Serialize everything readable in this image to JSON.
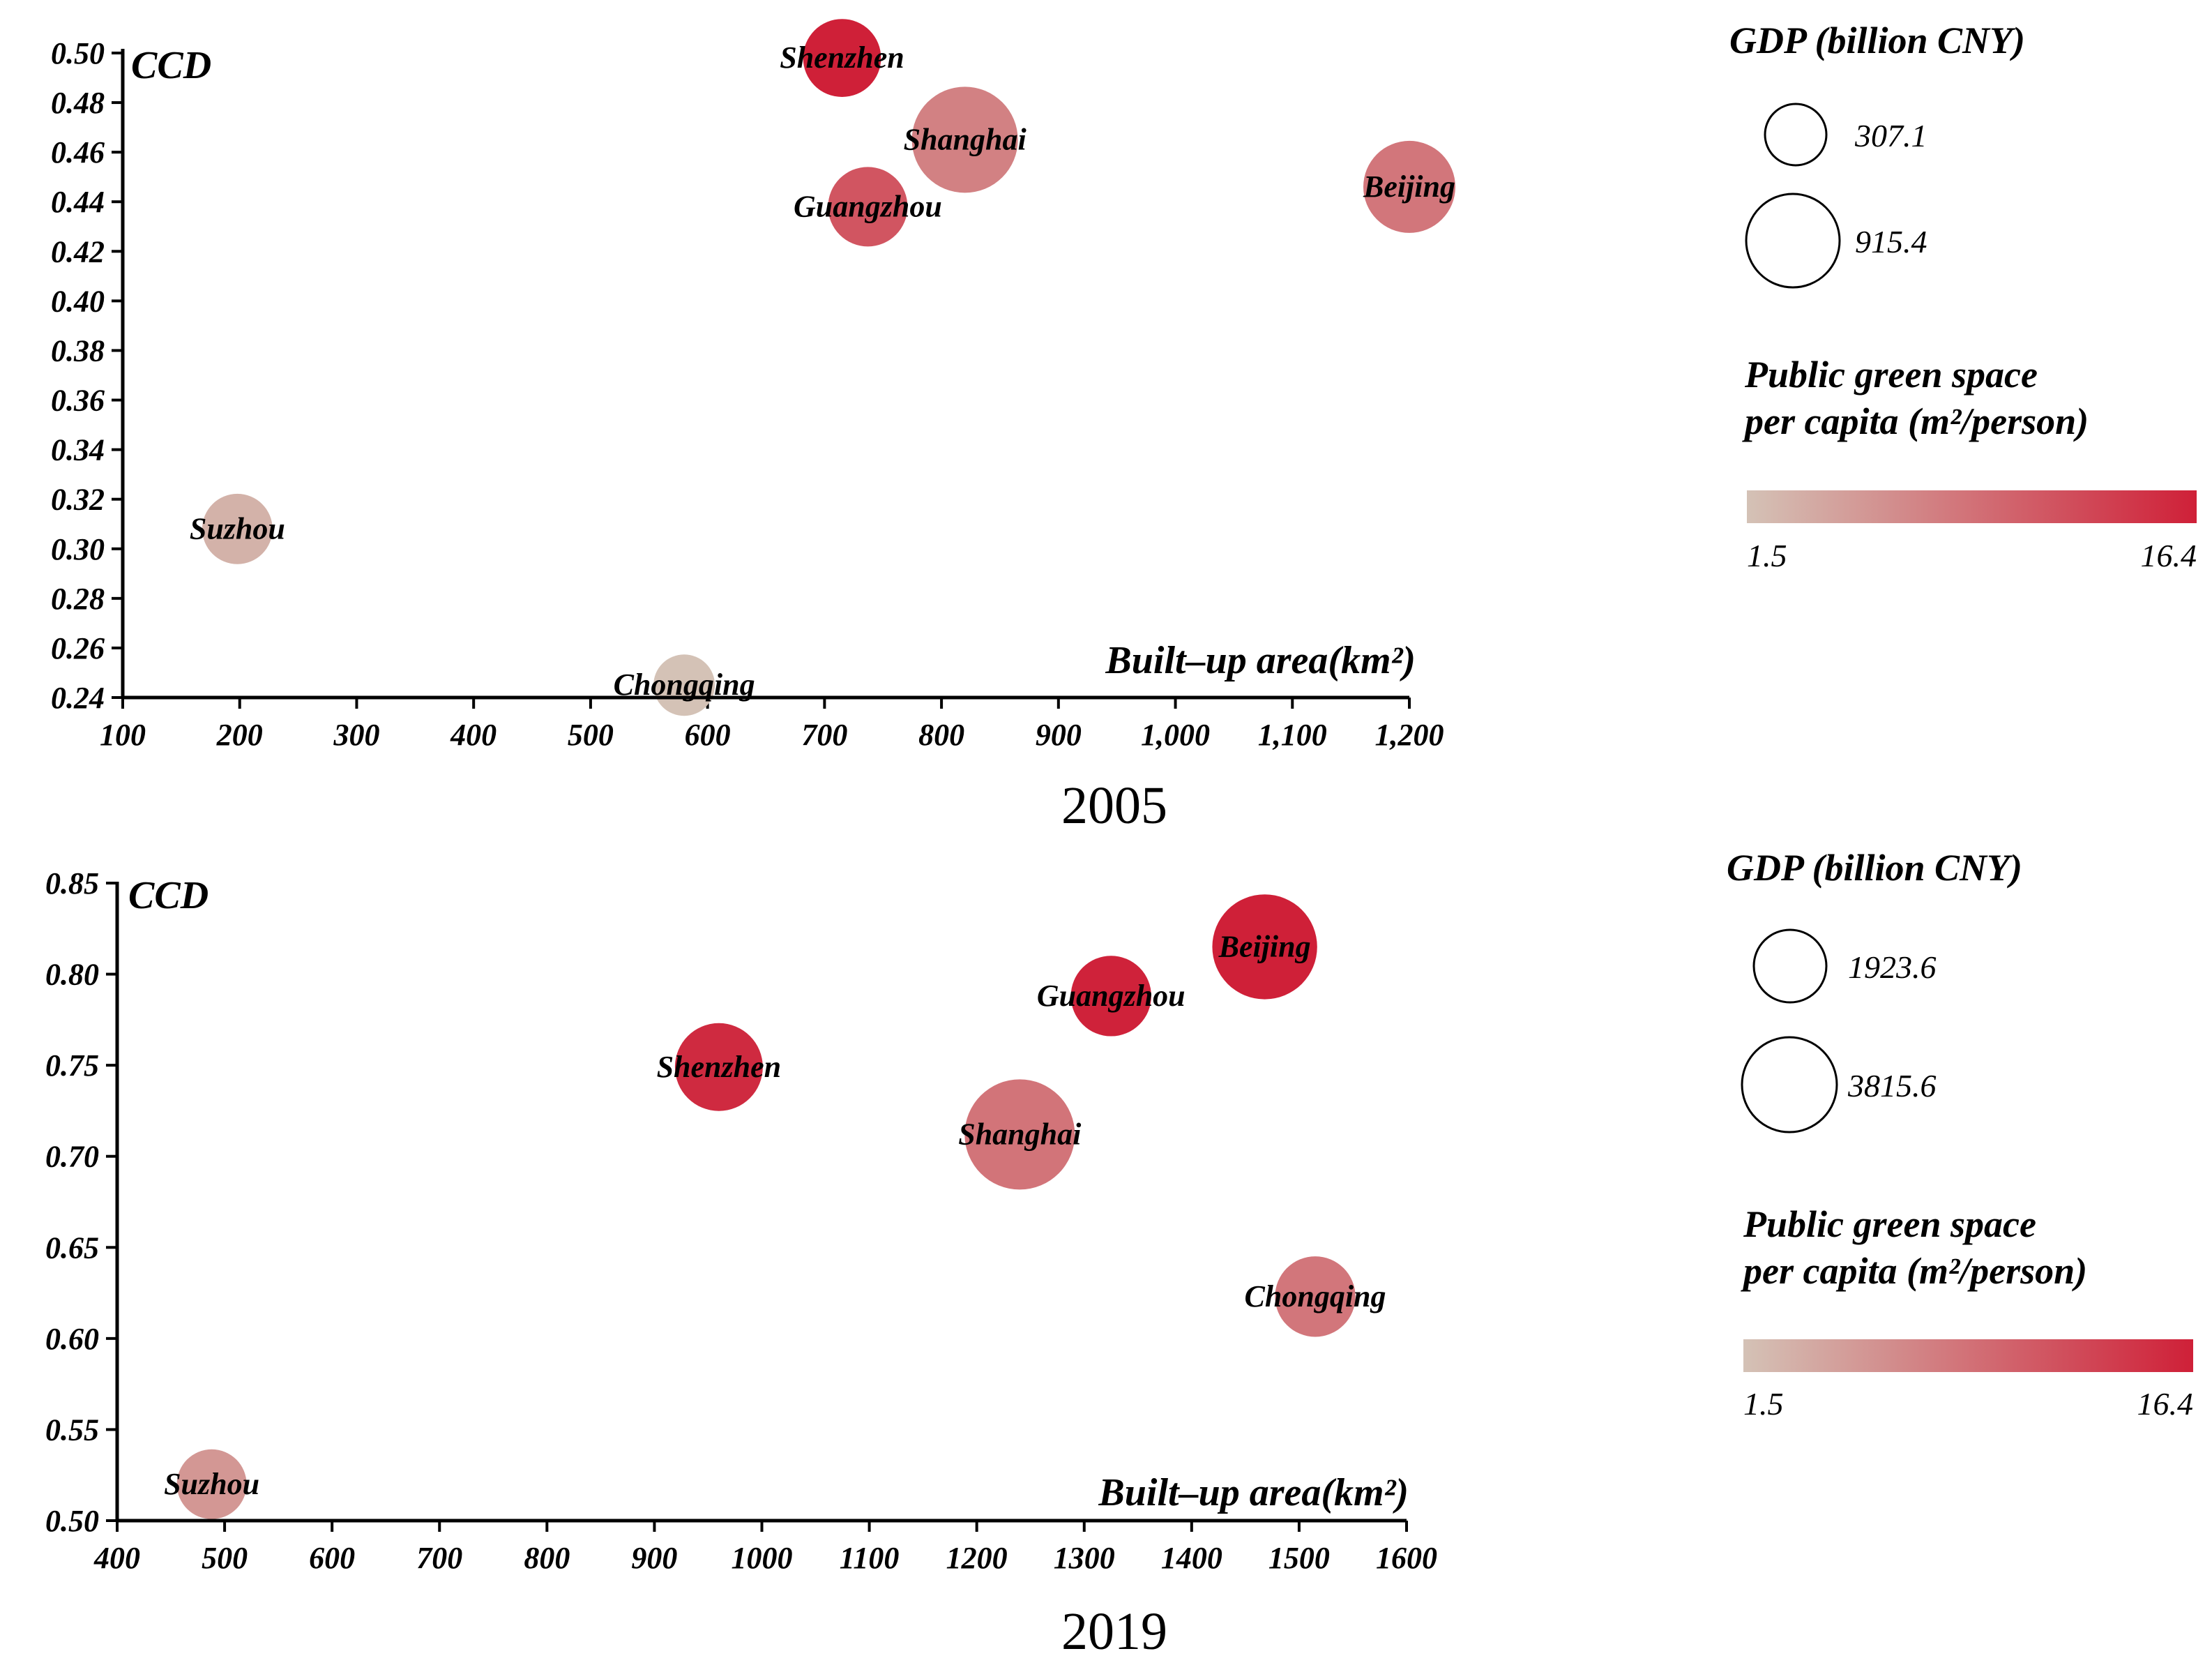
{
  "colors": {
    "low": "#d4c2b6",
    "high": "#cf2038"
  },
  "chart_data": [
    {
      "type": "scatter",
      "subtype": "bubble",
      "caption": "2005",
      "ylabel": "CCD",
      "xlabel": "Built–up area(km²)",
      "xlim": [
        100,
        1200
      ],
      "ylim": [
        0.24,
        0.5
      ],
      "xticks": [
        100,
        200,
        300,
        400,
        500,
        600,
        700,
        800,
        900,
        1000,
        1100,
        1200
      ],
      "xtick_labels": [
        "100",
        "200",
        "300",
        "400",
        "500",
        "600",
        "700",
        "800",
        "900",
        "1,000",
        "1,100",
        "1,200"
      ],
      "yticks": [
        0.24,
        0.26,
        0.28,
        0.3,
        0.32,
        0.34,
        0.36,
        0.38,
        0.4,
        0.42,
        0.44,
        0.46,
        0.48,
        0.5
      ],
      "ytick_labels": [
        "0.24",
        "0.26",
        "0.28",
        "0.30",
        "0.32",
        "0.34",
        "0.36",
        "0.38",
        "0.40",
        "0.42",
        "0.44",
        "0.46",
        "0.48",
        "0.50"
      ],
      "points": [
        {
          "name": "Shenzhen",
          "x": 715,
          "y": 0.498,
          "gdp": 495,
          "green": 16.4
        },
        {
          "name": "Shanghai",
          "x": 820,
          "y": 0.465,
          "gdp": 915.4,
          "green": 7.5
        },
        {
          "name": "Guangzhou",
          "x": 737,
          "y": 0.438,
          "gdp": 515,
          "green": 11.5
        },
        {
          "name": "Beijing",
          "x": 1200,
          "y": 0.446,
          "gdp": 690,
          "green": 8.5
        },
        {
          "name": "Suzhou",
          "x": 198,
          "y": 0.308,
          "gdp": 403,
          "green": 3.0
        },
        {
          "name": "Chongqing",
          "x": 580,
          "y": 0.245,
          "gdp": 307.1,
          "green": 1.5
        }
      ],
      "size_legend": {
        "title": "GDP (billion CNY)",
        "values": [
          307.1,
          915.4
        ],
        "labels": [
          "307.1",
          "915.4"
        ]
      },
      "color_legend": {
        "title_line1": "Public green space",
        "title_line2": "per capita (m²/person)",
        "min_label": "1.5",
        "max_label": "16.4",
        "min": 1.5,
        "max": 16.4
      }
    },
    {
      "type": "scatter",
      "subtype": "bubble",
      "caption": "2019",
      "ylabel": "CCD",
      "xlabel": "Built–up area(km²)",
      "xlim": [
        400,
        1600
      ],
      "ylim": [
        0.5,
        0.85
      ],
      "xticks": [
        400,
        500,
        600,
        700,
        800,
        900,
        1000,
        1100,
        1200,
        1300,
        1400,
        1500,
        1600
      ],
      "xtick_labels": [
        "400",
        "500",
        "600",
        "700",
        "800",
        "900",
        "1000",
        "1100",
        "1200",
        "1300",
        "1400",
        "1500",
        "1600"
      ],
      "yticks": [
        0.5,
        0.55,
        0.6,
        0.65,
        0.7,
        0.75,
        0.8,
        0.85
      ],
      "ytick_labels": [
        "0.50",
        "0.55",
        "0.60",
        "0.65",
        "0.70",
        "0.75",
        "0.80",
        "0.85"
      ],
      "points": [
        {
          "name": "Beijing",
          "x": 1468,
          "y": 0.815,
          "gdp": 3530,
          "green": 16.4
        },
        {
          "name": "Guangzhou",
          "x": 1325,
          "y": 0.788,
          "gdp": 2360,
          "green": 16.2
        },
        {
          "name": "Shenzhen",
          "x": 960,
          "y": 0.749,
          "gdp": 2690,
          "green": 15.5
        },
        {
          "name": "Shanghai",
          "x": 1240,
          "y": 0.712,
          "gdp": 3815.6,
          "green": 8.7
        },
        {
          "name": "Chongqing",
          "x": 1515,
          "y": 0.623,
          "gdp": 2360,
          "green": 8.5
        },
        {
          "name": "Suzhou",
          "x": 488,
          "y": 0.52,
          "gdp": 1923.6,
          "green": 5.5
        }
      ],
      "size_legend": {
        "title": "GDP (billion CNY)",
        "values": [
          1923.6,
          3815.6
        ],
        "labels": [
          "1923.6",
          "3815.6"
        ]
      },
      "color_legend": {
        "title_line1": "Public green space",
        "title_line2": "per capita (m²/person)",
        "min_label": "1.5",
        "max_label": "16.4",
        "min": 1.5,
        "max": 16.4
      }
    }
  ]
}
